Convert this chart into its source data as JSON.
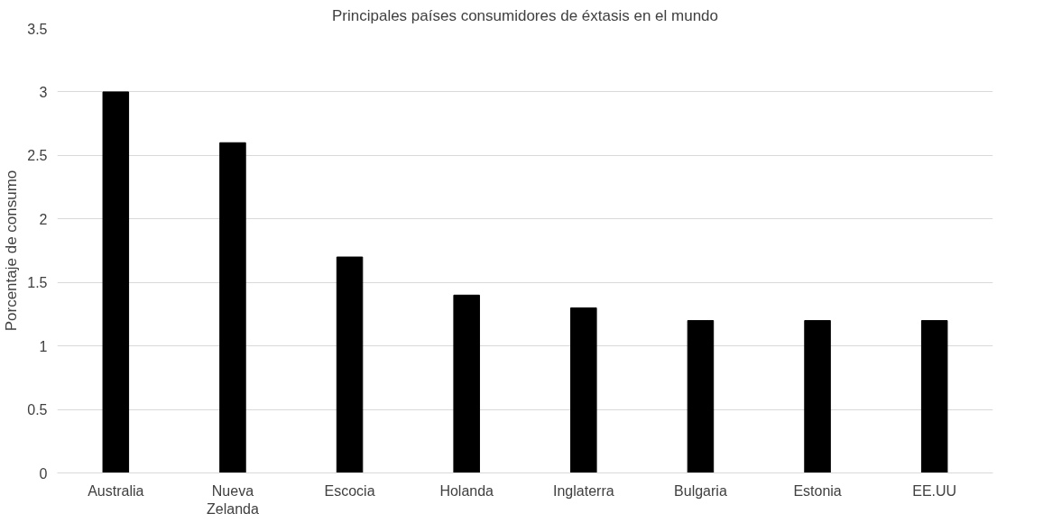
{
  "chart_data": {
    "type": "bar",
    "title": "Principales países consumidores de éxtasis en el mundo",
    "ylabel": "Porcentaje de consumo",
    "categories": [
      "Australia",
      "Nueva Zelanda",
      "Escocia",
      "Holanda",
      "Inglaterra",
      "Bulgaria",
      "Estonia",
      "EE.UU"
    ],
    "values": [
      3,
      2.6,
      1.7,
      1.4,
      1.3,
      1.2,
      1.2,
      1.2
    ],
    "color": "#000000",
    "ylim": [
      0,
      3.5
    ],
    "yticks": [
      0,
      0.5,
      1,
      1.5,
      2,
      2.5,
      3,
      3.5
    ],
    "grid": "y"
  }
}
